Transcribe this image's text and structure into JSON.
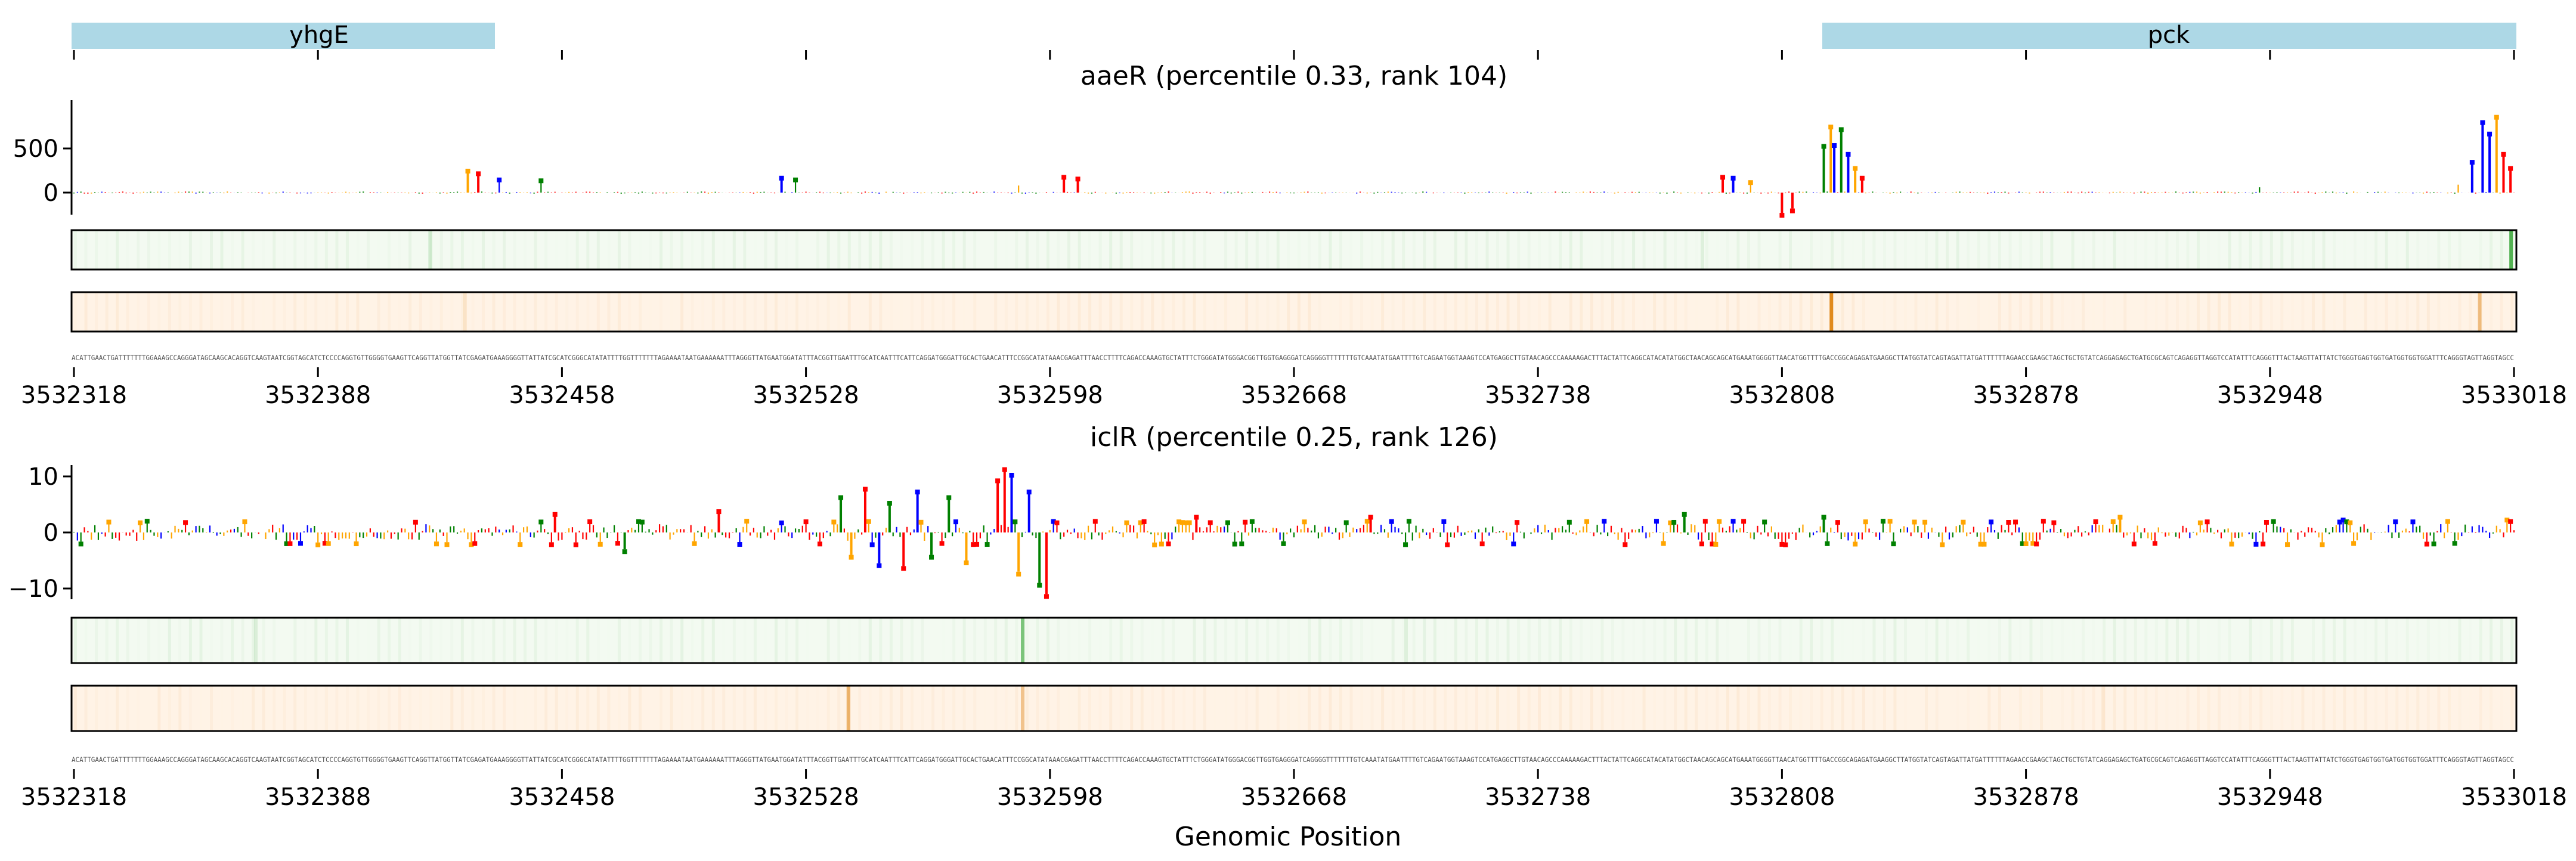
{
  "figure": {
    "xlabel": "Genomic Position",
    "x_start": 3532318,
    "x_end": 3533018,
    "x_ticks": [
      3532318,
      3532388,
      3532458,
      3532528,
      3532598,
      3532668,
      3532738,
      3532808,
      3532878,
      3532948,
      3533018
    ],
    "x_tick_labels": [
      "3532318",
      "3532388",
      "3532458",
      "3532528",
      "3532598",
      "3532668",
      "3532738",
      "3532808",
      "3532878",
      "3532948",
      "3533018"
    ],
    "sequence": "ACATTGAACTGATTTTTTTGGAAAGCCAGGGATAGCAAGCACAGGTCAAGTAATCGGTAGCATCTCCCCAGGTGTTGGGGTGAAGTTCAGGTTATGGTTATCGAGATGAAAGGGGTTATTATCGCATCGGGCATATATTTTGGTTTTTTTAGAAAATAATGAAAAAATTTAGGGTTATGAATGGATATTTACGGTTGAATTTGCATCAATTTCATTCAGGATGGGATTGCACTGAACATTTCCGGCATATAAACGAGATTTAACCTTTTCAGACCAAAGTGCTATTTCTGGGATATGGGACGGTTGGTGAGGGATCAGGGGTTTTTTTGTCAAATATGAATTTTGTCAGAATGGTAAAGTCCATGAGGCTTGTAACAGCCCAAAAAGACTTTACTATTCAGGCATACATATGGCTAACAGCAGCATGAAATGGGGTTAACATGGTTTTGACCGGCAGAGATGAAGGCTTATGGTATCAGTAGATTATGATTTTTTAGAACCGAAGCTAGCTGCTGTATCAGGAGAGCTGATGCGCAGTCAGAGGTTAGGTCCATATTTCAGGGTTTACTAAGTTATTATCTGGGTGAGTGGTGATGGTGGTGGATTTCAGGGTAGTTAGGTAGCC",
    "genes": [
      {
        "name": "yhgE",
        "start": 3532318,
        "end": 3532440
      },
      {
        "name": "pck",
        "start": 3532820,
        "end": 3533018
      }
    ],
    "colors": {
      "gene_bar": "#add8e6",
      "A": "#008000",
      "C": "#0000ff",
      "G": "#ffa500",
      "T": "#ff0000",
      "heat_green": "#2ca02c",
      "heat_orange": "#e08a1e",
      "heat_green_bg": "#f3faf1",
      "heat_orange_bg": "#fff3e6"
    }
  },
  "chart_data": [
    {
      "type": "bar",
      "title": "aaeR (percentile 0.33, rank 104)",
      "xlabel": "",
      "ylabel": "",
      "ylim": [
        -30,
        900
      ],
      "y_ticks": [
        0,
        500
      ],
      "y_tick_labels": [
        "0",
        "500"
      ],
      "baseline_amplitude": 12,
      "peaks": [
        {
          "x": 3532431,
          "value": 230
        },
        {
          "x": 3532434,
          "value": 200
        },
        {
          "x": 3532440,
          "value": 130
        },
        {
          "x": 3532452,
          "value": 120
        },
        {
          "x": 3532521,
          "value": 150
        },
        {
          "x": 3532525,
          "value": 130
        },
        {
          "x": 3532589,
          "value": 80
        },
        {
          "x": 3532602,
          "value": 160
        },
        {
          "x": 3532606,
          "value": 140
        },
        {
          "x": 3532791,
          "value": 160
        },
        {
          "x": 3532794,
          "value": 150
        },
        {
          "x": 3532799,
          "value": 100
        },
        {
          "x": 3532808,
          "value": -230
        },
        {
          "x": 3532811,
          "value": -180
        },
        {
          "x": 3532820,
          "value": 510
        },
        {
          "x": 3532822,
          "value": 730
        },
        {
          "x": 3532823,
          "value": 520
        },
        {
          "x": 3532825,
          "value": 700
        },
        {
          "x": 3532827,
          "value": 420
        },
        {
          "x": 3532829,
          "value": 260
        },
        {
          "x": 3532831,
          "value": 150
        },
        {
          "x": 3532945,
          "value": 60
        },
        {
          "x": 3533002,
          "value": 90
        },
        {
          "x": 3533006,
          "value": 330
        },
        {
          "x": 3533009,
          "value": 780
        },
        {
          "x": 3533011,
          "value": 650
        },
        {
          "x": 3533013,
          "value": 840
        },
        {
          "x": 3533015,
          "value": 420
        },
        {
          "x": 3533017,
          "value": 260
        }
      ],
      "heat_green_peaks": [
        {
          "x": 3533017,
          "value": 0.8
        },
        {
          "x": 3532420,
          "value": 0.15
        },
        {
          "x": 3532785,
          "value": 0.1
        }
      ],
      "heat_orange_peaks": [
        {
          "x": 3532822,
          "value": 1.0
        },
        {
          "x": 3533008,
          "value": 0.5
        },
        {
          "x": 3532430,
          "value": 0.15
        }
      ]
    },
    {
      "type": "bar",
      "title": "iclR (percentile 0.25, rank 126)",
      "xlabel": "Genomic Position",
      "ylabel": "",
      "ylim": [
        -13,
        13
      ],
      "y_ticks": [
        -10,
        0,
        10
      ],
      "y_tick_labels": [
        "−10",
        "0",
        "10"
      ],
      "baseline_amplitude": 1.8,
      "peaks": [
        {
          "x": 3532538,
          "value": 6
        },
        {
          "x": 3532541,
          "value": -4
        },
        {
          "x": 3532545,
          "value": 7.5
        },
        {
          "x": 3532549,
          "value": -5.5
        },
        {
          "x": 3532552,
          "value": 5
        },
        {
          "x": 3532556,
          "value": -6
        },
        {
          "x": 3532560,
          "value": 7
        },
        {
          "x": 3532564,
          "value": -4
        },
        {
          "x": 3532569,
          "value": 6
        },
        {
          "x": 3532574,
          "value": -5
        },
        {
          "x": 3532583,
          "value": 9
        },
        {
          "x": 3532585,
          "value": 11
        },
        {
          "x": 3532587,
          "value": 10
        },
        {
          "x": 3532589,
          "value": -7
        },
        {
          "x": 3532592,
          "value": 7
        },
        {
          "x": 3532595,
          "value": -9
        },
        {
          "x": 3532597,
          "value": -11
        },
        {
          "x": 3532503,
          "value": 3.5
        },
        {
          "x": 3532456,
          "value": 3
        },
        {
          "x": 3532476,
          "value": -3
        },
        {
          "x": 3532640,
          "value": 2.5
        },
        {
          "x": 3532690,
          "value": 2.5
        },
        {
          "x": 3532780,
          "value": 3
        },
        {
          "x": 3532820,
          "value": 2.5
        },
        {
          "x": 3532905,
          "value": 2.5
        },
        {
          "x": 3532969,
          "value": 2
        },
        {
          "x": 3533016,
          "value": 2
        }
      ],
      "heat_green_peaks": [
        {
          "x": 3532590,
          "value": 0.6
        },
        {
          "x": 3532370,
          "value": 0.12
        },
        {
          "x": 3532700,
          "value": 0.1
        }
      ],
      "heat_orange_peaks": [
        {
          "x": 3532540,
          "value": 0.6
        },
        {
          "x": 3532590,
          "value": 0.45
        },
        {
          "x": 3532900,
          "value": 0.1
        }
      ]
    }
  ]
}
